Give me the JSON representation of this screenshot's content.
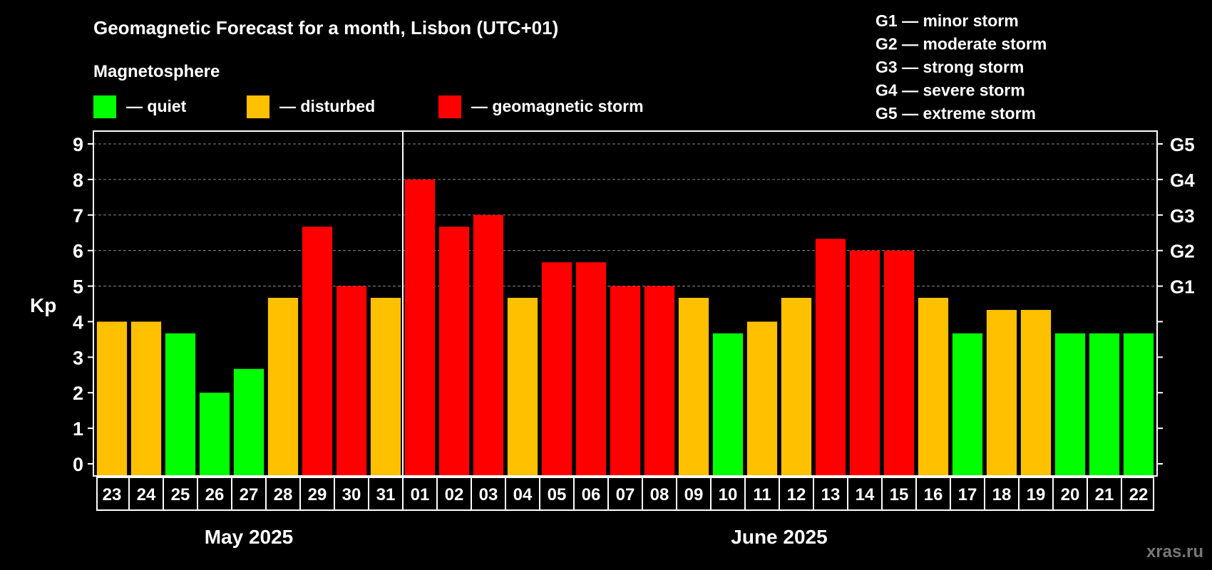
{
  "chart_data": {
    "type": "bar",
    "title": "Geomagnetic Forecast for a month, Lisbon (UTC+01)",
    "ylabel": "Kp",
    "ylim": [
      0,
      9
    ],
    "yticks": [
      "0",
      "1",
      "2",
      "3",
      "4",
      "5",
      "6",
      "7",
      "8",
      "9"
    ],
    "grid": true,
    "legend_title": "Magnetosphere",
    "legend": [
      {
        "key": "quiet",
        "label": "— quiet",
        "color": "#00ff00"
      },
      {
        "key": "disturbed",
        "label": "— disturbed",
        "color": "#ffc000"
      },
      {
        "key": "storm",
        "label": "— geomagnetic storm",
        "color": "#ff0000"
      }
    ],
    "g_scale": [
      {
        "label": "G1 — minor storm"
      },
      {
        "label": "G2 — moderate storm"
      },
      {
        "label": "G3 — strong storm"
      },
      {
        "label": "G4 — severe storm"
      },
      {
        "label": "G5 — extreme storm"
      }
    ],
    "right_axis": [
      {
        "label": "G1",
        "kp": 5
      },
      {
        "label": "G2",
        "kp": 6
      },
      {
        "label": "G3",
        "kp": 7
      },
      {
        "label": "G4",
        "kp": 8
      },
      {
        "label": "G5",
        "kp": 9
      }
    ],
    "categories": [
      "23",
      "24",
      "25",
      "26",
      "27",
      "28",
      "29",
      "30",
      "31",
      "01",
      "02",
      "03",
      "04",
      "05",
      "06",
      "07",
      "08",
      "09",
      "10",
      "11",
      "12",
      "13",
      "14",
      "15",
      "16",
      "17",
      "18",
      "19",
      "20",
      "21",
      "22"
    ],
    "values": [
      4.0,
      4.0,
      3.67,
      2.0,
      2.67,
      4.67,
      6.67,
      5.0,
      4.67,
      8.0,
      6.67,
      7.0,
      4.67,
      5.67,
      5.67,
      5.0,
      5.0,
      4.67,
      3.67,
      4.0,
      4.67,
      6.33,
      6.0,
      6.0,
      4.67,
      3.67,
      4.33,
      4.33,
      3.67,
      3.67,
      3.67
    ],
    "levels": [
      "disturbed",
      "disturbed",
      "quiet",
      "quiet",
      "quiet",
      "disturbed",
      "storm",
      "storm",
      "disturbed",
      "storm",
      "storm",
      "storm",
      "disturbed",
      "storm",
      "storm",
      "storm",
      "storm",
      "disturbed",
      "quiet",
      "disturbed",
      "disturbed",
      "storm",
      "storm",
      "storm",
      "disturbed",
      "quiet",
      "disturbed",
      "disturbed",
      "quiet",
      "quiet",
      "quiet"
    ],
    "months": [
      {
        "label": "May 2025",
        "count": 9
      },
      {
        "label": "June 2025",
        "count": 22
      }
    ]
  },
  "watermark": "xras.ru"
}
